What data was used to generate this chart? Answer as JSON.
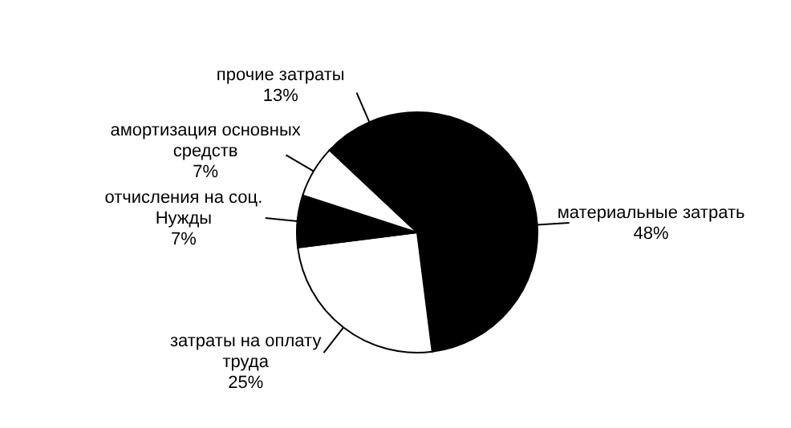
{
  "chart_data": {
    "type": "pie",
    "categories": [
      "материальные затрать",
      "затраты на оплату труда",
      "отчисления на соц. Нужды",
      "амортизация основных средств",
      "прочие затраты"
    ],
    "values": [
      48,
      25,
      7,
      7,
      13
    ],
    "value_labels": [
      "48%",
      "25%",
      "7%",
      "7%",
      "13%"
    ],
    "colors": [
      "#000000",
      "#ffffff",
      "#000000",
      "#ffffff",
      "#000000"
    ]
  }
}
